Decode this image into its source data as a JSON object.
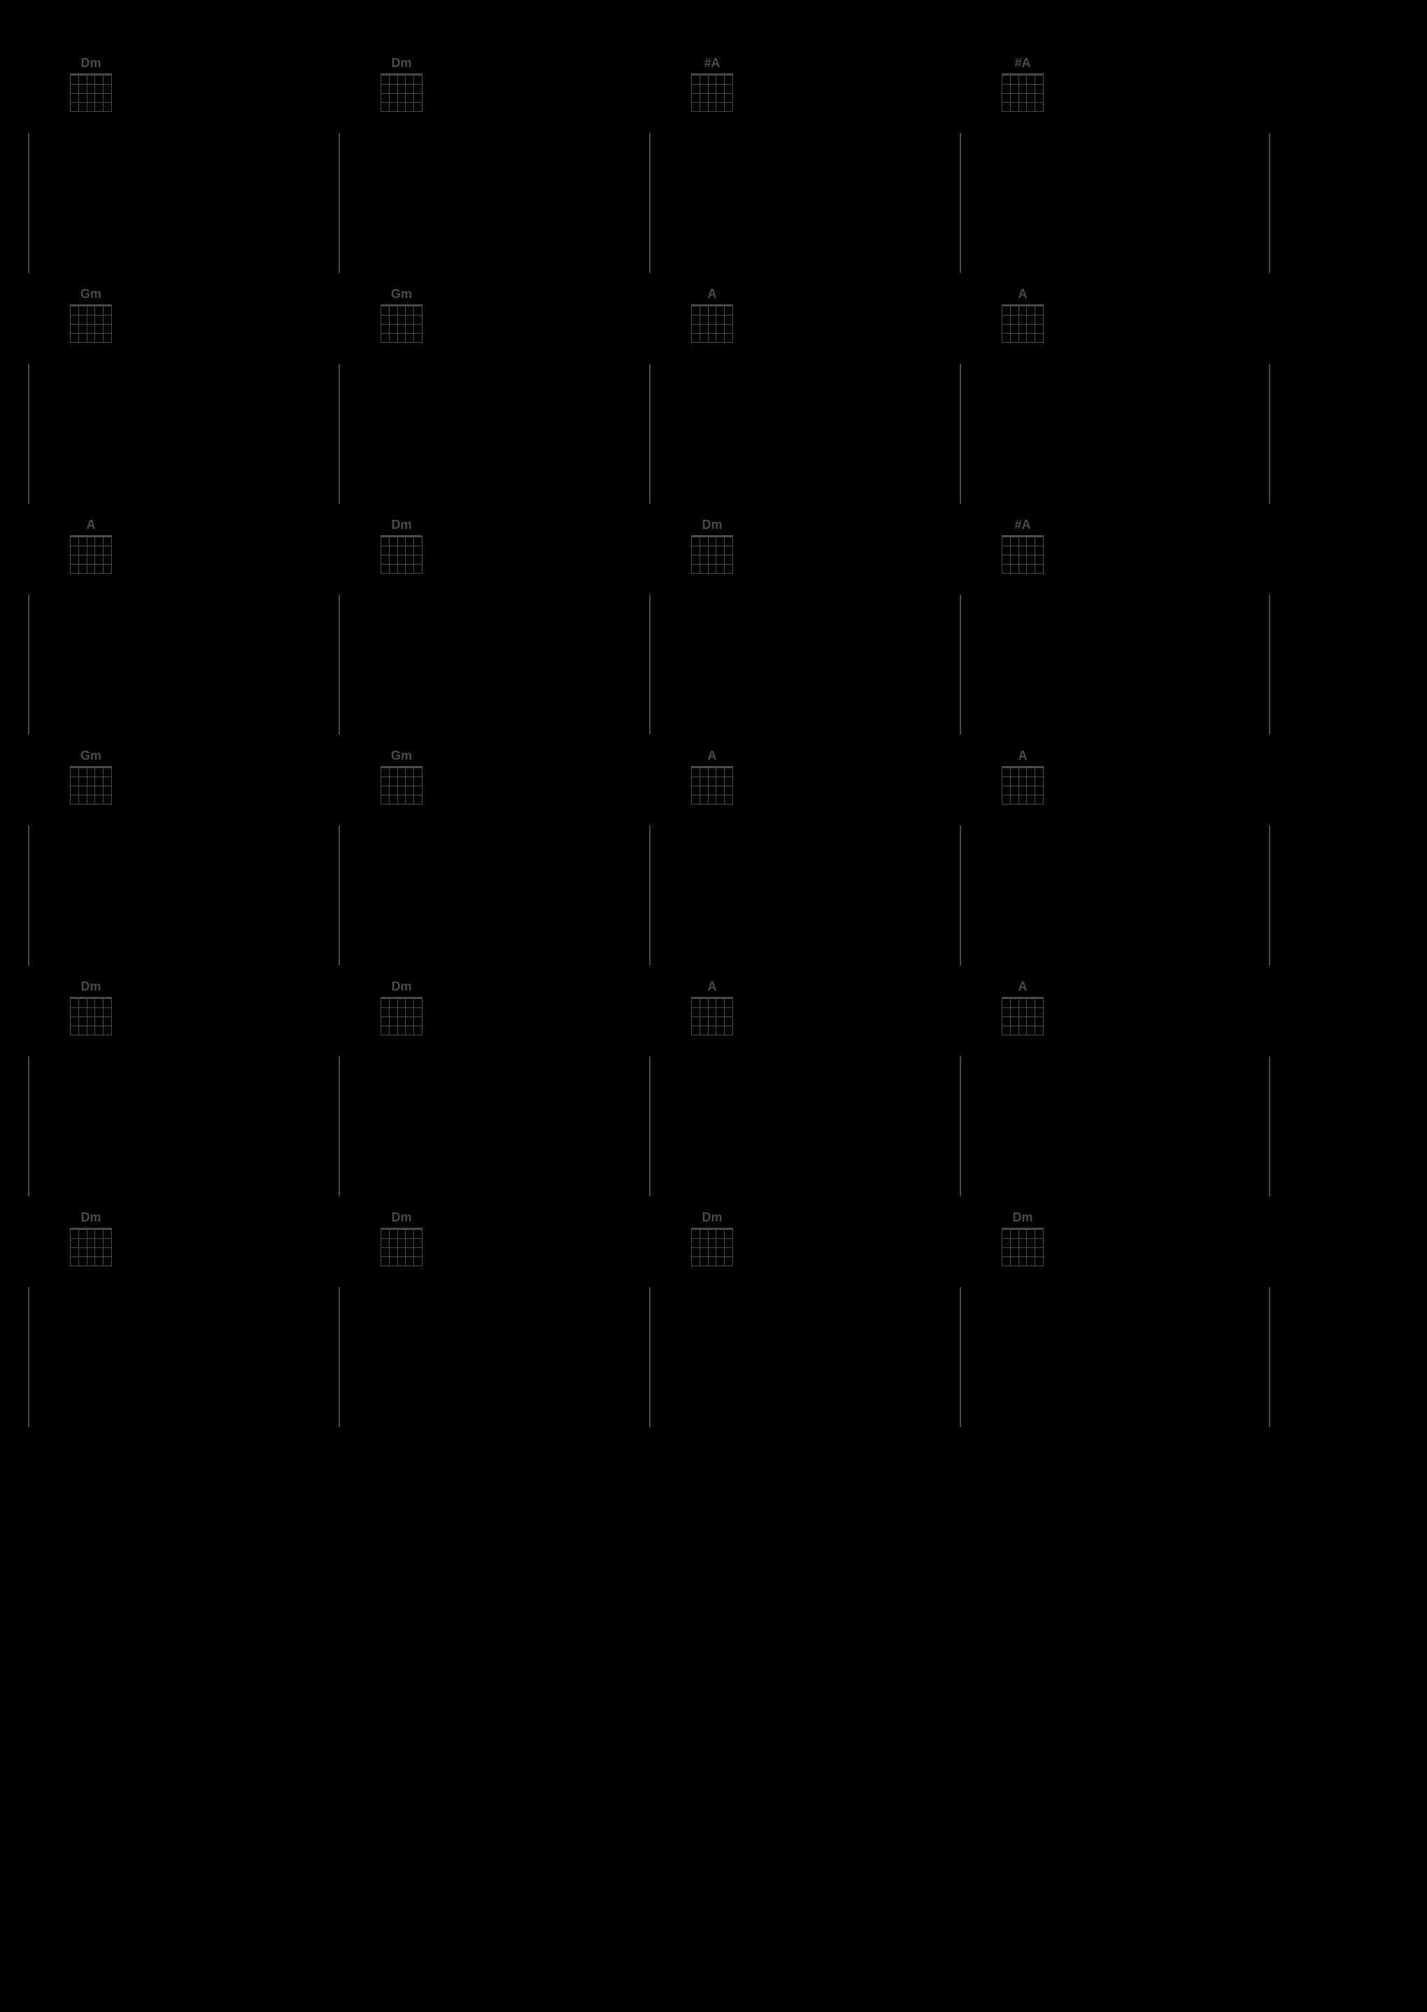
{
  "rows": [
    {
      "chords": [
        "Dm",
        "Dm",
        "#A",
        "#A"
      ]
    },
    {
      "chords": [
        "Gm",
        "Gm",
        "A",
        "A"
      ]
    },
    {
      "chords": [
        "A",
        "Dm",
        "Dm",
        "#A"
      ]
    },
    {
      "chords": [
        "Gm",
        "Gm",
        "A",
        "A"
      ]
    },
    {
      "chords": [
        "Dm",
        "Dm",
        "A",
        "A"
      ]
    },
    {
      "chords": [
        "Dm",
        "Dm",
        "Dm",
        "Dm"
      ]
    }
  ],
  "styling": {
    "background_color": "#000000",
    "line_color": "#4a4a4a",
    "text_color": "#4a4a4a",
    "chord_name_fontsize": 18,
    "grid_rows": 4,
    "grid_cols": 5,
    "measure_width": 444,
    "staff_height": 200,
    "rows_count": 6,
    "measures_per_row": 4
  }
}
